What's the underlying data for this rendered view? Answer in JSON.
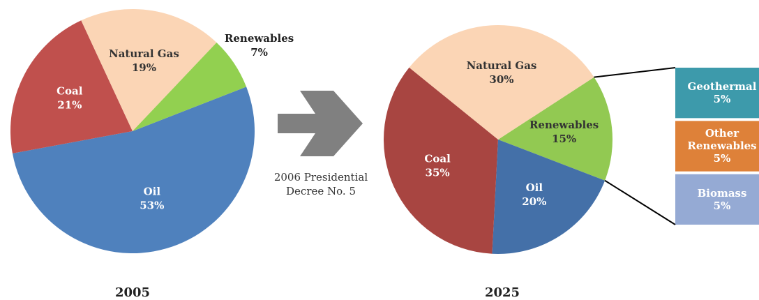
{
  "chart_data": [
    {
      "type": "pie",
      "title": "2005",
      "categories": [
        "Oil",
        "Coal",
        "Natural Gas",
        "Renewables"
      ],
      "values": [
        53,
        21,
        19,
        7
      ],
      "value_labels": [
        "53%",
        "21%",
        "19%",
        "7%"
      ],
      "colors": [
        "#4f81bd",
        "#c0504d",
        "#fbd5b5",
        "#92d050"
      ]
    },
    {
      "type": "pie",
      "title": "2025",
      "categories": [
        "Renewables",
        "Oil",
        "Coal",
        "Natural Gas"
      ],
      "values": [
        15,
        20,
        35,
        30
      ],
      "value_labels": [
        "15%",
        "20%",
        "35%",
        "30%"
      ],
      "colors": [
        "#92c952",
        "#4470a8",
        "#a84541",
        "#fbd5b5"
      ],
      "annotation": "2006 Presidential Decree No. 5"
    },
    {
      "type": "bar",
      "stacked": true,
      "series": [
        {
          "name": "Geothermal",
          "color": "#3d9aab",
          "values": [
            5
          ],
          "value_labels": [
            "5%"
          ]
        },
        {
          "name": "Other Renewables",
          "color": "#de8139",
          "values": [
            5
          ],
          "value_labels": [
            "5%"
          ]
        },
        {
          "name": "Biomass",
          "color": "#95aad4",
          "values": [
            5
          ],
          "value_labels": [
            "5%"
          ]
        }
      ]
    }
  ]
}
